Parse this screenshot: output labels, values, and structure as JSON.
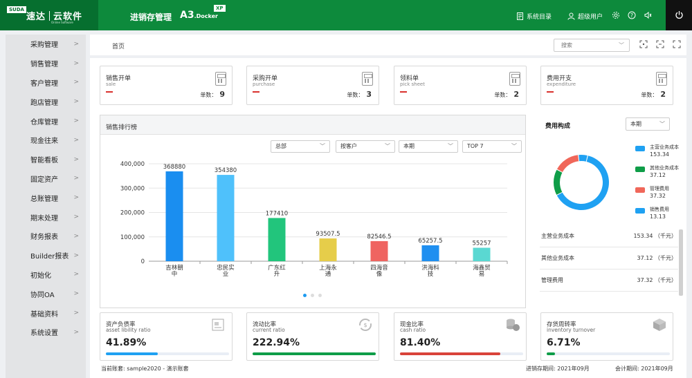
{
  "header": {
    "logo_badge": "SUDA",
    "logo_name": "速达",
    "logo_product": "云软件",
    "logo_sub": "Online Software",
    "app_title": "进销存管理",
    "app_version": "A3",
    "app_edition": ".Docker",
    "xp_badge": "XP",
    "sys_menu": "系统目录",
    "user": "超级用户"
  },
  "sidebar": {
    "items": [
      {
        "label": "采购管理"
      },
      {
        "label": "销售管理"
      },
      {
        "label": "客户管理"
      },
      {
        "label": "跑店管理"
      },
      {
        "label": "仓库管理"
      },
      {
        "label": "现金往来"
      },
      {
        "label": "智能看板"
      },
      {
        "label": "固定资产"
      },
      {
        "label": "总账管理"
      },
      {
        "label": "期末处理"
      },
      {
        "label": "财务报表"
      },
      {
        "label": "Builder报表"
      },
      {
        "label": "初始化"
      },
      {
        "label": "协同OA"
      },
      {
        "label": "基础资料"
      },
      {
        "label": "系统设置"
      }
    ]
  },
  "topbar": {
    "breadcrumb": "首页",
    "search_placeholder": "搜索"
  },
  "cards": [
    {
      "title": "销售开单",
      "sub": "sale",
      "count_label": "单数：",
      "count": "9"
    },
    {
      "title": "采购开单",
      "sub": "purchase",
      "count_label": "单数：",
      "count": "3"
    },
    {
      "title": "领料单",
      "sub": "pick sheet",
      "count_label": "单数：",
      "count": "2"
    },
    {
      "title": "费用开支",
      "sub": "expenditure",
      "count_label": "单数：",
      "count": "2"
    }
  ],
  "ranking": {
    "title": "销售排行榜",
    "filters": [
      "总部",
      "按客户",
      "本期",
      "TOP 7"
    ]
  },
  "chart_data": {
    "type": "bar",
    "categories": [
      "吉林朝中",
      "忠民实业",
      "广东红升",
      "上海永通",
      "四海音像",
      "洪海科技",
      "海鑫贸易"
    ],
    "category_lines": [
      [
        "吉林朝",
        "中"
      ],
      [
        "忠民实",
        "业"
      ],
      [
        "广东红",
        "升"
      ],
      [
        "上海永",
        "通"
      ],
      [
        "四海音",
        "像"
      ],
      [
        "洪海科",
        "技"
      ],
      [
        "海鑫贸",
        "易"
      ]
    ],
    "values": [
      368880,
      354380,
      177410,
      93507.5,
      82546.5,
      65257.5,
      55257
    ],
    "value_labels": [
      "368880",
      "354380",
      "177410",
      "93507.5",
      "82546.5",
      "65257.5",
      "55257"
    ],
    "colors": [
      "#1a8ef0",
      "#4fc1fb",
      "#22c57c",
      "#e6cd4a",
      "#ef6461",
      "#1f8ff0",
      "#5ad8d2"
    ],
    "yticks": [
      "0",
      "100,000",
      "200,000",
      "300,000",
      "400,000"
    ],
    "ylim": [
      0,
      400000
    ]
  },
  "expense": {
    "title": "费用构成",
    "period": "本期",
    "legend": [
      {
        "name": "主营业务成本",
        "value": "153.34",
        "color": "#1fa1f2"
      },
      {
        "name": "其他业务成本",
        "value": "37.12",
        "color": "#0f9d48"
      },
      {
        "name": "管理费用",
        "value": "37.32",
        "color": "#f0675a"
      },
      {
        "name": "销售费用",
        "value": "13.13",
        "color": "#1fa1f2"
      }
    ],
    "donut_values": [
      153.34,
      37.12,
      37.32,
      13.13
    ],
    "rows": [
      {
        "name": "主营业务成本",
        "value": "153.34 （千元）"
      },
      {
        "name": "其他业务成本",
        "value": "37.12 （千元）"
      },
      {
        "name": "管理费用",
        "value": "37.32 （千元）"
      }
    ]
  },
  "ratios": [
    {
      "title": "资产负债率",
      "sub": "asset libility ratio",
      "value": "41.89%",
      "fraction": 0.4189,
      "color": "#1fa1f2"
    },
    {
      "title": "流动比率",
      "sub": "current ratio",
      "value": "222.94%",
      "fraction": 1.0,
      "color": "#0f9d48"
    },
    {
      "title": "现金比率",
      "sub": "cash ratio",
      "value": "81.40%",
      "fraction": 0.814,
      "color": "#d9433a"
    },
    {
      "title": "存货周转率",
      "sub": "inventory turnover",
      "value": "6.71%",
      "fraction": 0.0671,
      "color": "#0f9d48"
    }
  ],
  "footer": {
    "account": "当前账套: sample2020 - 演示账套",
    "inv_period": "进销存期间: 2021年09月",
    "acc_period": "会计期间: 2021年09月"
  }
}
